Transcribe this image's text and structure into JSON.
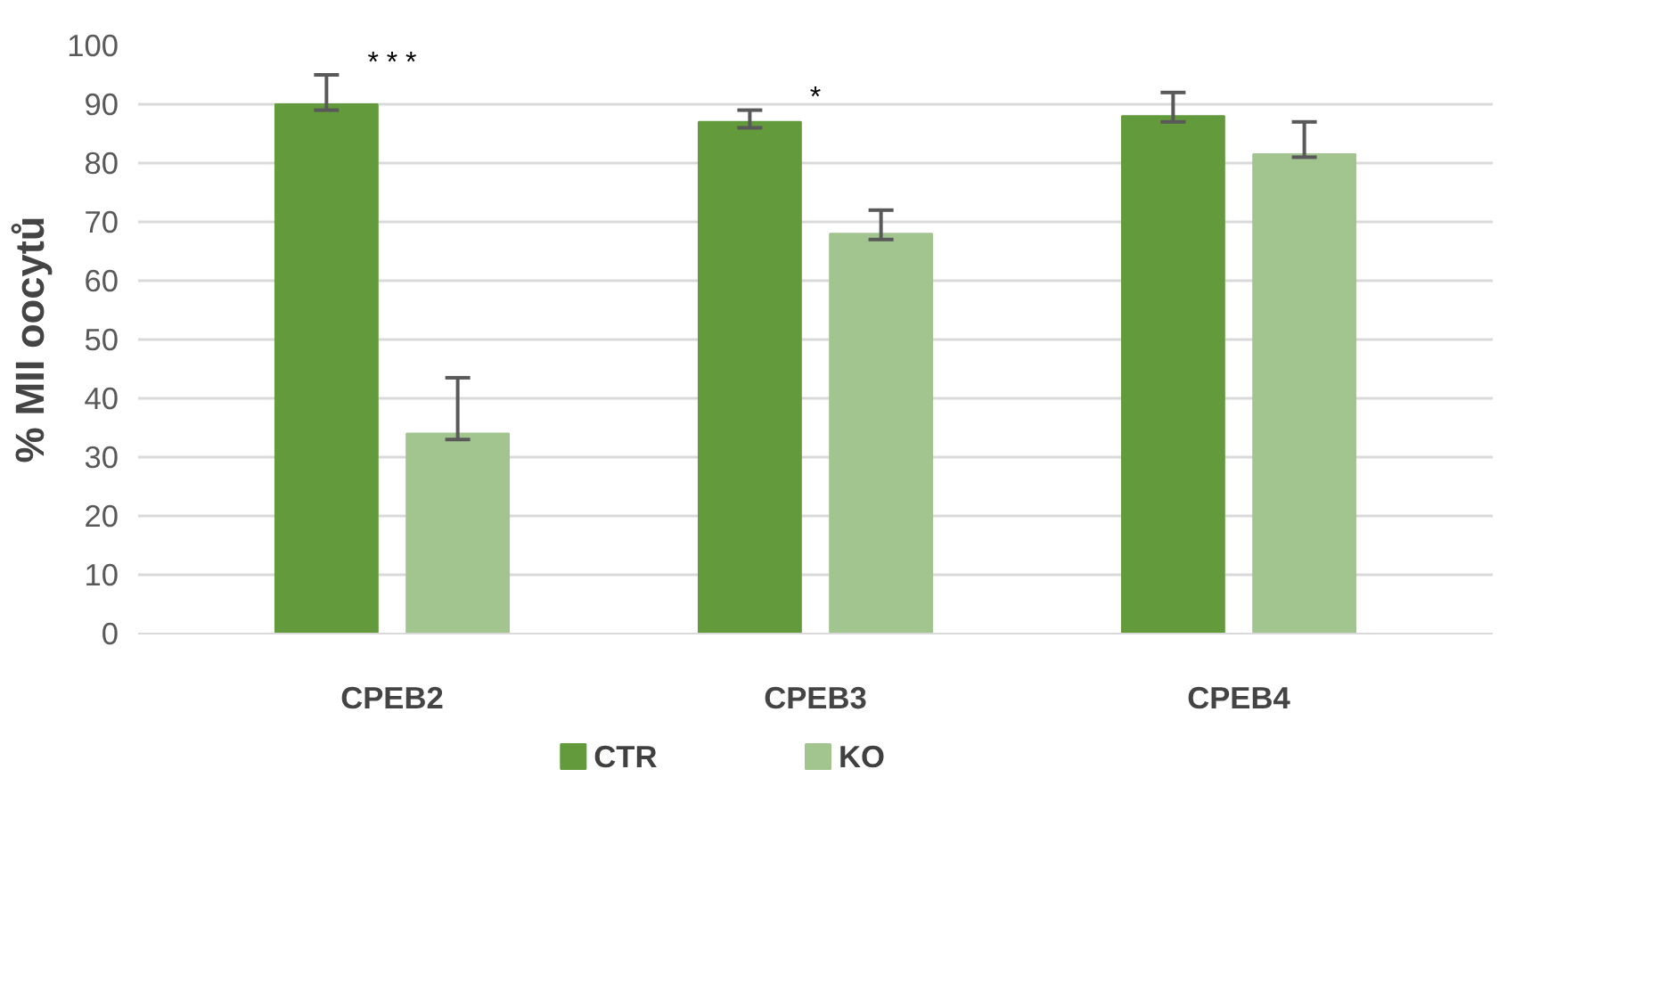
{
  "chart_data": {
    "type": "bar",
    "ylabel": "% MII oocytů",
    "categories": [
      "CPEB2",
      "CPEB3",
      "CPEB4"
    ],
    "series": [
      {
        "name": "CTR",
        "color": "#629a3c",
        "values": [
          90,
          87,
          88
        ],
        "errors": [
          [
            89,
            95
          ],
          [
            86,
            89
          ],
          [
            87,
            92
          ]
        ]
      },
      {
        "name": "KO",
        "color": "#a2c48f",
        "values": [
          34,
          68,
          81.5
        ],
        "errors": [
          [
            33,
            43.5
          ],
          [
            67,
            72
          ],
          [
            81,
            87
          ]
        ]
      }
    ],
    "ylim": [
      0,
      100
    ],
    "yticks": [
      0,
      10,
      20,
      30,
      40,
      50,
      60,
      70,
      80,
      90,
      100
    ],
    "grid": "y",
    "legend": "bottom",
    "annotations": [
      "* * *",
      "*"
    ]
  }
}
